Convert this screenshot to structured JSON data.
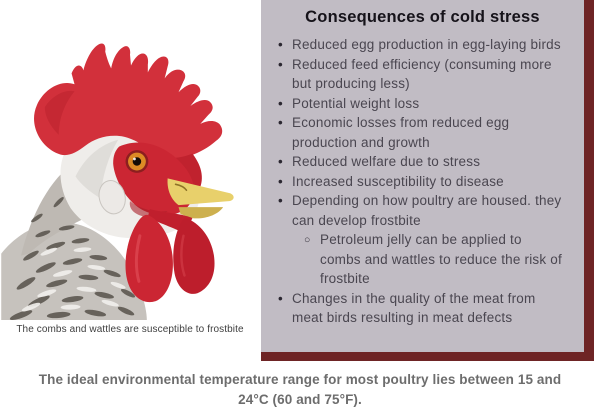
{
  "colors": {
    "panel_bg": "#c1bcc4",
    "panel_border": "#6e2425",
    "title_text": "#16131a",
    "body_text": "#4a4650",
    "footer_text": "#6d6d6d",
    "rooster_comb_red": "#cf2a35",
    "rooster_beak_yellow": "#e8d06b"
  },
  "figure": {
    "caption": "The combs and wattles are susceptible to frostbite"
  },
  "panel": {
    "title": "Consequences of cold stress",
    "bullets": [
      {
        "text": "Reduced egg production in egg-laying birds"
      },
      {
        "text": "Reduced feed efficiency (consuming more but producing less)"
      },
      {
        "text": "Potential weight loss"
      },
      {
        "text": "Economic losses from reduced egg production and growth"
      },
      {
        "text": "Reduced welfare due to stress"
      },
      {
        "text": "Increased susceptibility to disease"
      },
      {
        "text": "Depending on how poultry are housed. they can develop frostbite",
        "sub": [
          "Petroleum jelly can be applied to combs and wattles to reduce the risk of frostbite"
        ]
      },
      {
        "text": "Changes in the quality of the meat from meat birds resulting in meat defects"
      }
    ]
  },
  "footer": {
    "text": "The ideal environmental temperature range for most poultry lies between 15 and 24°C (60 and 75°F)."
  }
}
